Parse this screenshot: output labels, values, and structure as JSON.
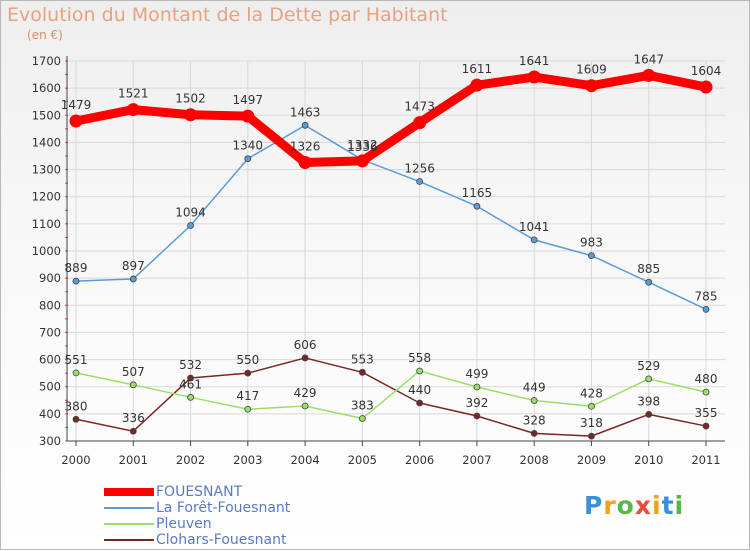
{
  "title": "Evolution du Montant de la Dette par Habitant",
  "unit": "(en €)",
  "logo_text": "Proxiti",
  "colors": {
    "title": "#e8a27e",
    "axis_text": "#333333",
    "grid": "#d9d9d9",
    "legend_text": "#5b79c8"
  },
  "chart_data": {
    "type": "line",
    "title": "Evolution du Montant de la Dette par Habitant",
    "ylabel": "(en €)",
    "xlabel": "",
    "x": [
      "2000",
      "2001",
      "2002",
      "2003",
      "2004",
      "2005",
      "2006",
      "2007",
      "2008",
      "2009",
      "2010",
      "2011"
    ],
    "ylim": [
      300,
      1700
    ],
    "yticks": [
      300,
      400,
      500,
      600,
      700,
      800,
      900,
      1000,
      1100,
      1200,
      1300,
      1400,
      1500,
      1600,
      1700
    ],
    "grid": true,
    "legend_position": "bottom-left",
    "series": [
      {
        "name": "FOUESNANT",
        "color": "#ff0000",
        "width": 9,
        "values": [
          1479,
          1521,
          1502,
          1497,
          1326,
          1332,
          1473,
          1611,
          1641,
          1609,
          1647,
          1604
        ]
      },
      {
        "name": "La Forêt-Fouesnant",
        "color": "#5b9bd5",
        "width": 1.5,
        "values": [
          889,
          897,
          1094,
          1340,
          1463,
          1336,
          1256,
          1165,
          1041,
          983,
          885,
          785
        ]
      },
      {
        "name": "Pleuven",
        "color": "#99e066",
        "width": 1.5,
        "values": [
          551,
          507,
          461,
          417,
          429,
          383,
          558,
          499,
          449,
          428,
          529,
          480
        ]
      },
      {
        "name": "Clohars-Fouesnant",
        "color": "#7a2626",
        "width": 1.5,
        "values": [
          380,
          336,
          532,
          550,
          606,
          553,
          440,
          392,
          328,
          318,
          398,
          355
        ]
      }
    ]
  }
}
